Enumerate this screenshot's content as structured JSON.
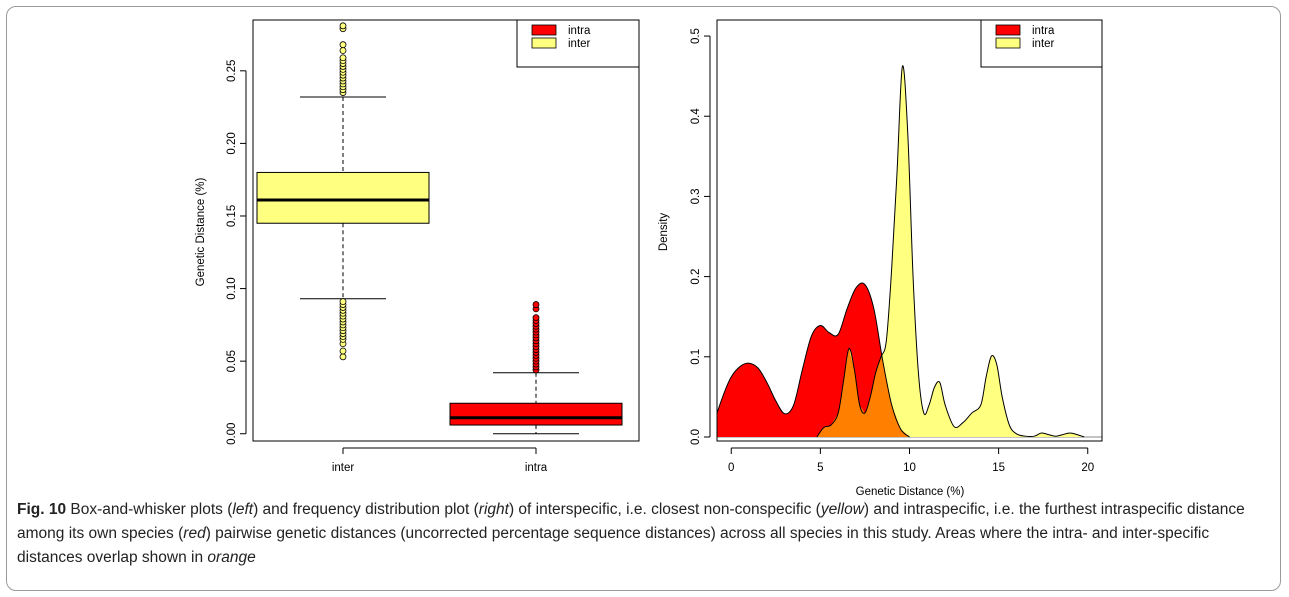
{
  "chart_data": [
    {
      "type": "box",
      "ylabel": "Genetic Distance (%)",
      "categories": [
        "inter",
        "intra"
      ],
      "y_ticks": [
        0.0,
        0.05,
        0.1,
        0.15,
        0.2,
        0.25
      ],
      "y_tick_labels": [
        "0.00",
        "0.05",
        "0.10",
        "0.15",
        "0.20",
        "0.25"
      ],
      "ylim": [
        -0.005,
        0.285
      ],
      "boxes": [
        {
          "category": "inter",
          "whisker_low": 0.093,
          "q1": 0.145,
          "median": 0.161,
          "q3": 0.18,
          "whisker_high": 0.232,
          "outliers": [
            0.053,
            0.057,
            0.062,
            0.065,
            0.067,
            0.069,
            0.071,
            0.073,
            0.075,
            0.077,
            0.079,
            0.081,
            0.083,
            0.085,
            0.087,
            0.089,
            0.091,
            0.235,
            0.237,
            0.239,
            0.241,
            0.243,
            0.245,
            0.247,
            0.249,
            0.251,
            0.253,
            0.255,
            0.257,
            0.259,
            0.264,
            0.268,
            0.279,
            0.281
          ],
          "color": "#ffff80"
        },
        {
          "category": "intra",
          "whisker_low": 0.0,
          "q1": 0.006,
          "median": 0.011,
          "q3": 0.021,
          "whisker_high": 0.042,
          "outliers": [
            0.044,
            0.046,
            0.048,
            0.05,
            0.052,
            0.054,
            0.056,
            0.058,
            0.06,
            0.062,
            0.064,
            0.066,
            0.068,
            0.07,
            0.072,
            0.074,
            0.076,
            0.078,
            0.08,
            0.086,
            0.089
          ],
          "color": "#ff0000"
        }
      ],
      "legend": {
        "position": "top-right",
        "entries": [
          {
            "name": "intra",
            "color": "#ff0000"
          },
          {
            "name": "inter",
            "color": "#ffff80"
          }
        ]
      }
    },
    {
      "type": "area",
      "xlabel": "Genetic Distance (%)",
      "ylabel": "Density",
      "xlim": [
        -0.8,
        20.8
      ],
      "ylim": [
        -0.005,
        0.52
      ],
      "x_ticks": [
        0,
        5,
        10,
        15,
        20
      ],
      "x_tick_labels": [
        "0",
        "5",
        "10",
        "15",
        "20"
      ],
      "y_ticks": [
        0.0,
        0.1,
        0.2,
        0.3,
        0.4,
        0.5
      ],
      "y_tick_labels": [
        "0.0",
        "0.1",
        "0.2",
        "0.3",
        "0.4",
        "0.5"
      ],
      "overlap_color": "#ff8000",
      "series": [
        {
          "name": "intra",
          "color": "#ff0000",
          "x": [
            -0.8,
            -0.4,
            0,
            0.5,
            1,
            1.5,
            2,
            2.5,
            3,
            3.5,
            4,
            4.5,
            5,
            5.5,
            6,
            6.5,
            7,
            7.5,
            8,
            8.5,
            9,
            9.5,
            10
          ],
          "y": [
            0.03,
            0.055,
            0.075,
            0.088,
            0.092,
            0.086,
            0.068,
            0.045,
            0.029,
            0.04,
            0.085,
            0.126,
            0.139,
            0.13,
            0.128,
            0.16,
            0.186,
            0.19,
            0.16,
            0.095,
            0.04,
            0.01,
            0.0
          ]
        },
        {
          "name": "inter",
          "color": "#ffff80",
          "x": [
            4.8,
            5.2,
            5.6,
            6.0,
            6.3,
            6.6,
            6.9,
            7.2,
            7.5,
            7.8,
            8.1,
            8.4,
            8.7,
            9.0,
            9.3,
            9.6,
            9.9,
            10.2,
            10.5,
            10.8,
            11.1,
            11.4,
            11.7,
            12.0,
            12.5,
            13.0,
            13.5,
            14.0,
            14.3,
            14.6,
            14.9,
            15.2,
            15.6,
            16.0,
            16.5,
            17.0,
            17.4,
            17.8,
            18.2,
            18.6,
            19.0,
            19.4,
            19.8
          ],
          "y": [
            0.0,
            0.012,
            0.015,
            0.03,
            0.07,
            0.11,
            0.085,
            0.04,
            0.03,
            0.05,
            0.08,
            0.1,
            0.12,
            0.21,
            0.33,
            0.462,
            0.38,
            0.2,
            0.08,
            0.03,
            0.04,
            0.062,
            0.068,
            0.04,
            0.013,
            0.018,
            0.03,
            0.04,
            0.075,
            0.101,
            0.09,
            0.05,
            0.015,
            0.004,
            0.001,
            0.001,
            0.005,
            0.003,
            0.001,
            0.003,
            0.005,
            0.003,
            0.0
          ]
        }
      ],
      "legend": {
        "position": "top-right",
        "entries": [
          {
            "name": "intra",
            "color": "#ff0000"
          },
          {
            "name": "inter",
            "color": "#ffff80"
          }
        ]
      }
    }
  ],
  "caption": {
    "label": "Fig. 10",
    "parts": [
      " Box-and-whisker plots (",
      "left",
      ") and frequency distribution plot (",
      "right",
      ") of interspecific, i.e. closest non-conspecific (",
      "yellow",
      ") and intraspecific, i.e. the furthest intraspecific distance among its own species (",
      "red",
      ") pairwise genetic distances (uncorrected percentage sequence distances) across all species in this study. Areas where the intra- and inter-specific distances overlap shown in ",
      "orange"
    ]
  }
}
